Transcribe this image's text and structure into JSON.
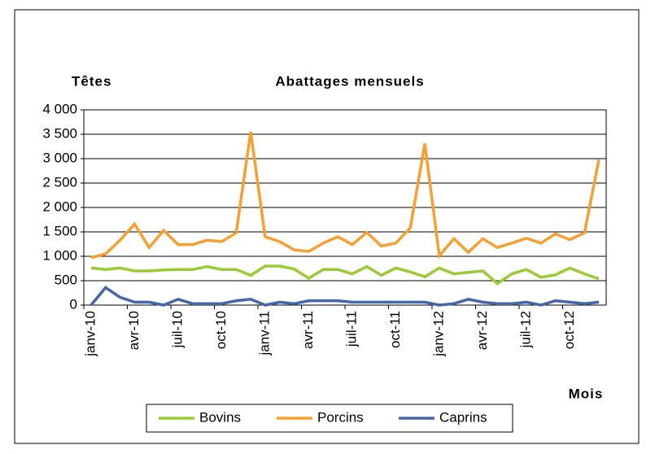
{
  "chart_data": {
    "type": "line",
    "title": "Abattages mensuels",
    "y_label": "Têtes",
    "x_label": "Mois",
    "categories": [
      "janv-10",
      null,
      null,
      "avr-10",
      null,
      null,
      "juil-10",
      null,
      null,
      "oct-10",
      null,
      null,
      "janv-11",
      null,
      null,
      "avr-11",
      null,
      null,
      "juil-11",
      null,
      null,
      "oct-11",
      null,
      null,
      "janv-12",
      null,
      null,
      "avr-12",
      null,
      null,
      "juil-12",
      null,
      null,
      "oct-12",
      null,
      null
    ],
    "series": [
      {
        "name": "Bovins",
        "color": "#99cc33",
        "values": [
          760,
          730,
          760,
          700,
          700,
          720,
          730,
          730,
          790,
          730,
          730,
          610,
          800,
          800,
          740,
          550,
          730,
          730,
          640,
          790,
          610,
          760,
          680,
          580,
          760,
          640,
          670,
          700,
          440,
          640,
          730,
          570,
          620,
          760,
          640,
          540
        ]
      },
      {
        "name": "Porcins",
        "color": "#f7a030",
        "values": [
          970,
          1050,
          1330,
          1660,
          1180,
          1530,
          1240,
          1240,
          1330,
          1300,
          1480,
          3550,
          1400,
          1300,
          1130,
          1100,
          1270,
          1400,
          1240,
          1490,
          1210,
          1270,
          1580,
          3310,
          1010,
          1360,
          1080,
          1360,
          1180,
          1270,
          1370,
          1270,
          1460,
          1340,
          1480,
          2980
        ]
      },
      {
        "name": "Caprins",
        "color": "#4466aa",
        "values": [
          0,
          360,
          160,
          60,
          60,
          0,
          120,
          30,
          30,
          30,
          90,
          120,
          0,
          60,
          30,
          90,
          90,
          90,
          60,
          60,
          60,
          60,
          60,
          60,
          0,
          30,
          120,
          60,
          30,
          30,
          60,
          0,
          90,
          60,
          30,
          60
        ]
      }
    ],
    "ylim": [
      0,
      4000
    ],
    "yticks": [
      0,
      500,
      {
        "value": 1000,
        "label": "1 000"
      },
      {
        "value": 1500,
        "label": "1 500"
      },
      {
        "value": 2000,
        "label": "2 000"
      },
      {
        "value": 2500,
        "label": "2 500"
      },
      {
        "value": 3000,
        "label": "3 000"
      },
      {
        "value": 3500,
        "label": "3 500"
      },
      {
        "value": 4000,
        "label": "4 000"
      }
    ],
    "grid": true
  }
}
